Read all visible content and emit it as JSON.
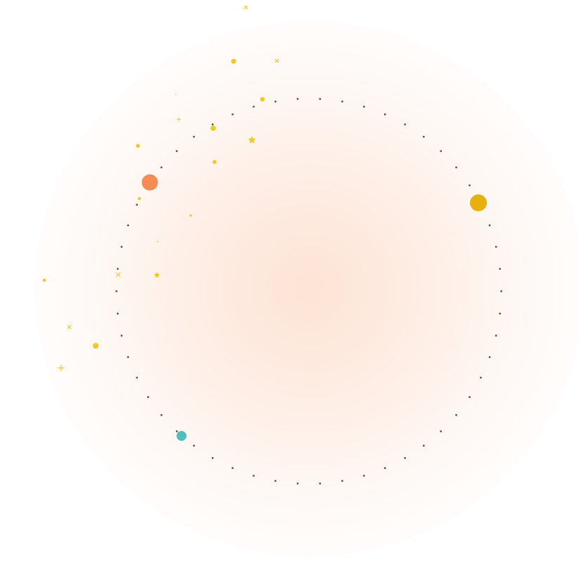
{
  "colors": {
    "background": "#ffffff",
    "glow": "#fde2d2",
    "ring_dots": "#4a4a4a",
    "orbit_large_orange": "#f58b55",
    "orbit_large_gold": "#e8b00f",
    "orbit_teal": "#4ebfbb",
    "sparkle_yellow": "#f5c61e"
  },
  "orbit_ring": {
    "dot_count": 54,
    "dot_shape": "square"
  },
  "planets": [
    {
      "name": "orange-planet",
      "color_key": "orbit_large_orange"
    },
    {
      "name": "gold-planet",
      "color_key": "orbit_large_gold"
    },
    {
      "name": "teal-planet",
      "color_key": "orbit_teal"
    }
  ]
}
